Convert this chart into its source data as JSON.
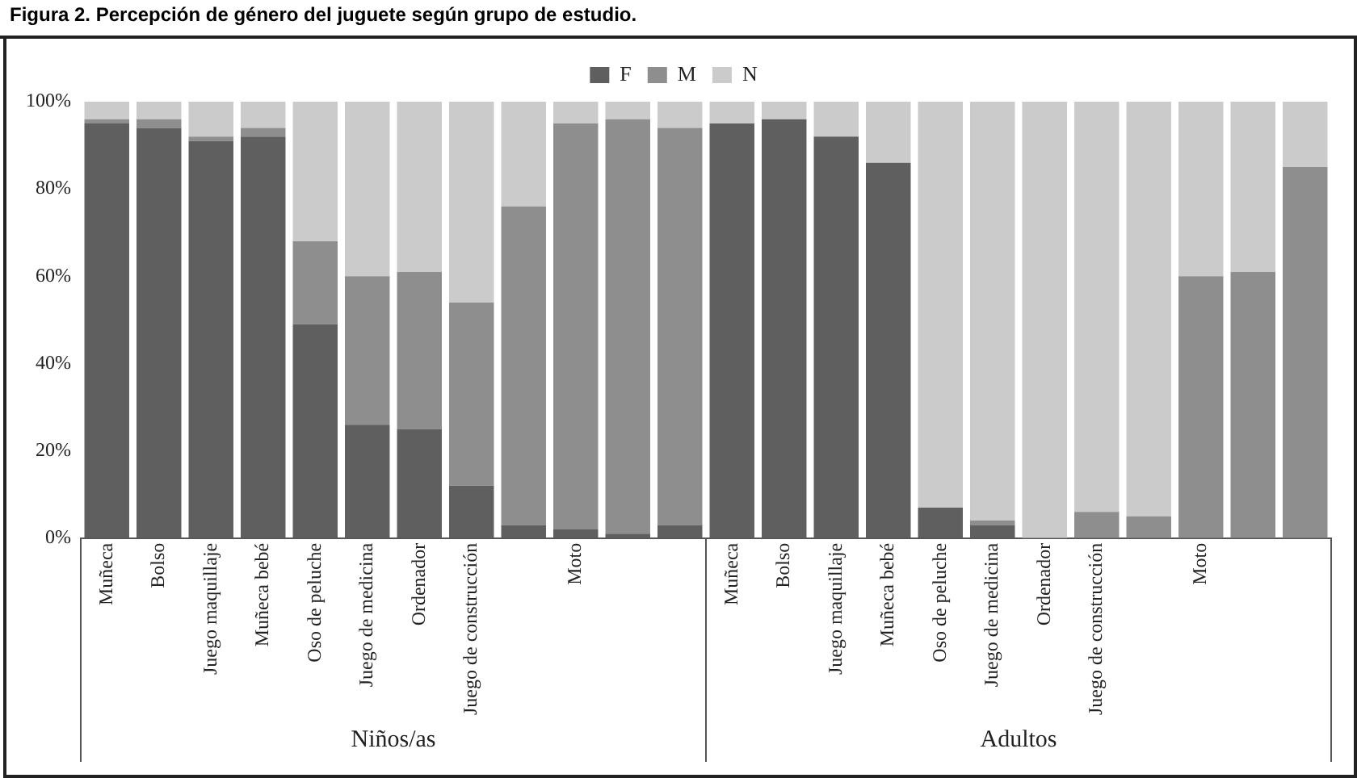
{
  "chart_data": {
    "type": "bar",
    "stacked": true,
    "title": "Figura 2. Percepción de género del juguete según grupo de estudio.",
    "categories": [
      "Muñeca",
      "Bolso",
      "Juego maquillaje",
      "Muñeca bebé",
      "Oso de peluche",
      "Juego de medicina",
      "Ordenador",
      "Juego de construcción",
      null,
      "Moto",
      null,
      null,
      "Muñeca",
      "Bolso",
      "Juego maquillaje",
      "Muñeca bebé",
      "Oso de peluche",
      "Juego de medicina",
      "Ordenador",
      "Juego de construcción",
      null,
      "Moto",
      null,
      null
    ],
    "series": [
      {
        "name": "F",
        "color": "#5f5f5f",
        "values": [
          95,
          94,
          91,
          92,
          49,
          26,
          25,
          12,
          3,
          2,
          1,
          3,
          95,
          96,
          92,
          86,
          7,
          3,
          0,
          0,
          0,
          0,
          0,
          0
        ]
      },
      {
        "name": "M",
        "color": "#8e8e8e",
        "values": [
          1,
          2,
          1,
          2,
          19,
          34,
          36,
          42,
          73,
          93,
          95,
          91,
          0,
          0,
          0,
          0,
          0,
          1,
          0,
          6,
          5,
          60,
          61,
          85
        ]
      },
      {
        "name": "N",
        "color": "#cbcbcb",
        "values": [
          4,
          4,
          8,
          6,
          32,
          40,
          39,
          46,
          24,
          5,
          4,
          6,
          5,
          4,
          8,
          14,
          93,
          96,
          100,
          94,
          95,
          40,
          39,
          15
        ]
      }
    ],
    "ylim": [
      0,
      100
    ],
    "yticks": [
      {
        "value": 0,
        "label": "0%"
      },
      {
        "value": 20,
        "label": "20%"
      },
      {
        "value": 40,
        "label": "40%"
      },
      {
        "value": 60,
        "label": "60%"
      },
      {
        "value": 80,
        "label": "80%"
      },
      {
        "value": 100,
        "label": "100%"
      }
    ],
    "grid": false,
    "legend": "top",
    "annotations": [
      "Niños/as",
      "Adultos"
    ]
  }
}
